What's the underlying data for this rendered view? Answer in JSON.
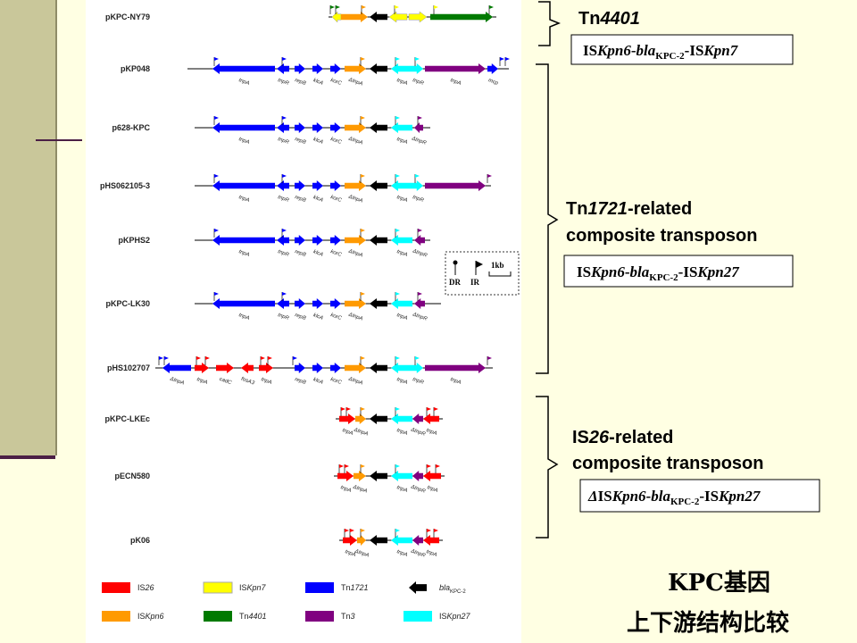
{
  "colors": {
    "IS26": "#ff0000",
    "ISKpn7": "#ffff00",
    "Tn1721": "#0000ff",
    "blaKPC-2": "#000000",
    "ISKpn6": "#ff9a00",
    "Tn4401": "#007a00",
    "Tn3": "#800080",
    "ISKpn27": "#00ffff"
  },
  "plasmids": [
    {
      "name": "pKPC-NY79",
      "features": [
        {
          "type": "ISKpn7",
          "start": 372,
          "end": 382,
          "dir": "left"
        },
        {
          "type": "ISKpn6",
          "start": 382,
          "end": 412,
          "dir": "right"
        },
        {
          "type": "blaKPC-2",
          "start": 414,
          "end": 434,
          "dir": "left"
        },
        {
          "type": "ISKpn7",
          "start": 436,
          "end": 456,
          "dir": "left"
        },
        {
          "type": "ISKpn7",
          "start": 458,
          "end": 478,
          "dir": "right"
        },
        {
          "type": "Tn4401",
          "start": 482,
          "end": 552,
          "dir": "right"
        }
      ],
      "flags": [
        {
          "x": 370,
          "color": "#007a00"
        },
        {
          "x": 376,
          "color": "#007a00"
        },
        {
          "x": 405,
          "color": "#ff9a00"
        },
        {
          "x": 442,
          "color": "#ffff00"
        },
        {
          "x": 486,
          "color": "#ffff00"
        },
        {
          "x": 548,
          "color": "#007a00"
        }
      ]
    },
    {
      "name": "pKP048",
      "features": [
        {
          "type": "Tn1721",
          "start": 238,
          "end": 308,
          "dir": "left"
        },
        {
          "type": "Tn1721",
          "start": 310,
          "end": 324,
          "dir": "left"
        },
        {
          "type": "Tn1721",
          "start": 330,
          "end": 342,
          "dir": "right"
        },
        {
          "type": "Tn1721",
          "start": 350,
          "end": 362,
          "dir": "right"
        },
        {
          "type": "Tn1721",
          "start": 370,
          "end": 382,
          "dir": "right"
        },
        {
          "type": "ISKpn6",
          "start": 386,
          "end": 410,
          "dir": "right"
        },
        {
          "type": "blaKPC-2",
          "start": 414,
          "end": 434,
          "dir": "left"
        },
        {
          "type": "ISKpn27",
          "start": 438,
          "end": 462,
          "dir": "left"
        },
        {
          "type": "ISKpn27",
          "start": 462,
          "end": 474,
          "dir": "right"
        },
        {
          "type": "Tn3",
          "start": 476,
          "end": 544,
          "dir": "right"
        },
        {
          "type": "Tn1721",
          "start": 546,
          "end": 558,
          "dir": "right"
        }
      ],
      "flags": [
        {
          "x": 240,
          "color": "#0000ff"
        },
        {
          "x": 316,
          "color": "#0000ff"
        },
        {
          "x": 404,
          "color": "#ff9a00"
        },
        {
          "x": 443,
          "color": "#00ffff"
        },
        {
          "x": 465,
          "color": "#00ffff"
        },
        {
          "x": 560,
          "color": "#0000ff"
        },
        {
          "x": 566,
          "color": "#0000ff"
        }
      ]
    },
    {
      "name": "p628-KPC",
      "features": [
        {
          "type": "Tn1721",
          "start": 238,
          "end": 308,
          "dir": "left"
        },
        {
          "type": "Tn1721",
          "start": 310,
          "end": 324,
          "dir": "left"
        },
        {
          "type": "Tn1721",
          "start": 330,
          "end": 342,
          "dir": "right"
        },
        {
          "type": "Tn1721",
          "start": 350,
          "end": 362,
          "dir": "right"
        },
        {
          "type": "Tn1721",
          "start": 370,
          "end": 382,
          "dir": "right"
        },
        {
          "type": "ISKpn6",
          "start": 386,
          "end": 410,
          "dir": "right"
        },
        {
          "type": "blaKPC-2",
          "start": 414,
          "end": 434,
          "dir": "left"
        },
        {
          "type": "ISKpn27",
          "start": 438,
          "end": 462,
          "dir": "left"
        },
        {
          "type": "Tn3",
          "start": 464,
          "end": 474,
          "dir": "left"
        }
      ],
      "flags": [
        {
          "x": 240,
          "color": "#0000ff"
        },
        {
          "x": 316,
          "color": "#0000ff"
        },
        {
          "x": 404,
          "color": "#ff9a00"
        },
        {
          "x": 443,
          "color": "#00ffff"
        },
        {
          "x": 468,
          "color": "#800080"
        }
      ]
    },
    {
      "name": "pHS062105-3",
      "features": [
        {
          "type": "Tn1721",
          "start": 238,
          "end": 308,
          "dir": "left"
        },
        {
          "type": "Tn1721",
          "start": 310,
          "end": 324,
          "dir": "left"
        },
        {
          "type": "Tn1721",
          "start": 330,
          "end": 342,
          "dir": "right"
        },
        {
          "type": "Tn1721",
          "start": 350,
          "end": 362,
          "dir": "right"
        },
        {
          "type": "Tn1721",
          "start": 370,
          "end": 382,
          "dir": "right"
        },
        {
          "type": "ISKpn6",
          "start": 386,
          "end": 410,
          "dir": "right"
        },
        {
          "type": "blaKPC-2",
          "start": 414,
          "end": 434,
          "dir": "left"
        },
        {
          "type": "ISKpn27",
          "start": 438,
          "end": 462,
          "dir": "left"
        },
        {
          "type": "ISKpn27",
          "start": 462,
          "end": 474,
          "dir": "right"
        },
        {
          "type": "Tn3",
          "start": 476,
          "end": 544,
          "dir": "right"
        }
      ],
      "flags": [
        {
          "x": 240,
          "color": "#0000ff"
        },
        {
          "x": 316,
          "color": "#0000ff"
        },
        {
          "x": 404,
          "color": "#ff9a00"
        },
        {
          "x": 443,
          "color": "#00ffff"
        },
        {
          "x": 465,
          "color": "#00ffff"
        },
        {
          "x": 546,
          "color": "#800080"
        }
      ]
    },
    {
      "name": "pKPHS2",
      "features": [
        {
          "type": "Tn1721",
          "start": 238,
          "end": 308,
          "dir": "left"
        },
        {
          "type": "Tn1721",
          "start": 310,
          "end": 324,
          "dir": "left"
        },
        {
          "type": "Tn1721",
          "start": 330,
          "end": 342,
          "dir": "right"
        },
        {
          "type": "Tn1721",
          "start": 350,
          "end": 362,
          "dir": "right"
        },
        {
          "type": "Tn1721",
          "start": 370,
          "end": 382,
          "dir": "right"
        },
        {
          "type": "ISKpn6",
          "start": 386,
          "end": 410,
          "dir": "right"
        },
        {
          "type": "blaKPC-2",
          "start": 414,
          "end": 434,
          "dir": "left"
        },
        {
          "type": "ISKpn27",
          "start": 438,
          "end": 462,
          "dir": "left"
        },
        {
          "type": "Tn3",
          "start": 464,
          "end": 476,
          "dir": "left"
        }
      ],
      "flags": [
        {
          "x": 240,
          "color": "#0000ff"
        },
        {
          "x": 316,
          "color": "#0000ff"
        },
        {
          "x": 404,
          "color": "#ff9a00"
        },
        {
          "x": 443,
          "color": "#00ffff"
        },
        {
          "x": 468,
          "color": "#800080"
        }
      ]
    },
    {
      "name": "pKPC-LK30",
      "features": [
        {
          "type": "Tn1721",
          "start": 238,
          "end": 308,
          "dir": "left"
        },
        {
          "type": "Tn1721",
          "start": 310,
          "end": 324,
          "dir": "left"
        },
        {
          "type": "Tn1721",
          "start": 330,
          "end": 342,
          "dir": "right"
        },
        {
          "type": "Tn1721",
          "start": 350,
          "end": 362,
          "dir": "right"
        },
        {
          "type": "Tn1721",
          "start": 370,
          "end": 382,
          "dir": "right"
        },
        {
          "type": "ISKpn6",
          "start": 386,
          "end": 410,
          "dir": "right"
        },
        {
          "type": "blaKPC-2",
          "start": 414,
          "end": 434,
          "dir": "left"
        },
        {
          "type": "ISKpn27",
          "start": 438,
          "end": 462,
          "dir": "left"
        },
        {
          "type": "Tn3",
          "start": 464,
          "end": 476,
          "dir": "left"
        }
      ],
      "flags": [
        {
          "x": 240,
          "color": "#0000ff"
        },
        {
          "x": 316,
          "color": "#0000ff"
        },
        {
          "x": 404,
          "color": "#ff9a00"
        },
        {
          "x": 443,
          "color": "#00ffff"
        },
        {
          "x": 468,
          "color": "#800080"
        }
      ]
    },
    {
      "name": "pHS102707",
      "features": [
        {
          "type": "Tn1721",
          "start": 182,
          "end": 214,
          "dir": "left"
        },
        {
          "type": "IS26",
          "start": 218,
          "end": 234,
          "dir": "right"
        },
        {
          "type": "IS26",
          "start": 242,
          "end": 262,
          "dir": "right"
        },
        {
          "type": "IS26",
          "start": 270,
          "end": 284,
          "dir": "left"
        },
        {
          "type": "IS26",
          "start": 290,
          "end": 306,
          "dir": "right"
        },
        {
          "type": "Tn1721",
          "start": 330,
          "end": 342,
          "dir": "right"
        },
        {
          "type": "Tn1721",
          "start": 350,
          "end": 362,
          "dir": "right"
        },
        {
          "type": "Tn1721",
          "start": 370,
          "end": 382,
          "dir": "right"
        },
        {
          "type": "ISKpn6",
          "start": 386,
          "end": 410,
          "dir": "right"
        },
        {
          "type": "blaKPC-2",
          "start": 414,
          "end": 434,
          "dir": "left"
        },
        {
          "type": "ISKpn27",
          "start": 438,
          "end": 462,
          "dir": "left"
        },
        {
          "type": "ISKpn27",
          "start": 462,
          "end": 474,
          "dir": "right"
        },
        {
          "type": "Tn3",
          "start": 476,
          "end": 544,
          "dir": "right"
        }
      ],
      "flags": [
        {
          "x": 178,
          "color": "#0000ff"
        },
        {
          "x": 184,
          "color": "#0000ff"
        },
        {
          "x": 220,
          "color": "#ff0000"
        },
        {
          "x": 230,
          "color": "#ff0000"
        },
        {
          "x": 292,
          "color": "#ff0000"
        },
        {
          "x": 300,
          "color": "#ff0000"
        },
        {
          "x": 328,
          "color": "#0000ff"
        },
        {
          "x": 404,
          "color": "#ff9a00"
        },
        {
          "x": 443,
          "color": "#00ffff"
        },
        {
          "x": 465,
          "color": "#00ffff"
        },
        {
          "x": 546,
          "color": "#800080"
        }
      ]
    },
    {
      "name": "pKPC-LKEc",
      "features": [
        {
          "type": "IS26",
          "start": 380,
          "end": 398,
          "dir": "right"
        },
        {
          "type": "ISKpn6",
          "start": 398,
          "end": 410,
          "dir": "right"
        },
        {
          "type": "blaKPC-2",
          "start": 414,
          "end": 434,
          "dir": "left"
        },
        {
          "type": "ISKpn27",
          "start": 438,
          "end": 462,
          "dir": "left"
        },
        {
          "type": "Tn3",
          "start": 462,
          "end": 474,
          "dir": "left"
        },
        {
          "type": "IS26",
          "start": 474,
          "end": 492,
          "dir": "left"
        }
      ],
      "flags": [
        {
          "x": 382,
          "color": "#ff0000"
        },
        {
          "x": 388,
          "color": "#ff0000"
        },
        {
          "x": 404,
          "color": "#ff9a00"
        },
        {
          "x": 443,
          "color": "#00ffff"
        },
        {
          "x": 478,
          "color": "#ff0000"
        },
        {
          "x": 486,
          "color": "#ff0000"
        }
      ]
    },
    {
      "name": "pECN580",
      "features": [
        {
          "type": "IS26",
          "start": 378,
          "end": 396,
          "dir": "right"
        },
        {
          "type": "ISKpn6",
          "start": 396,
          "end": 410,
          "dir": "right"
        },
        {
          "type": "blaKPC-2",
          "start": 414,
          "end": 434,
          "dir": "left"
        },
        {
          "type": "ISKpn27",
          "start": 438,
          "end": 462,
          "dir": "left"
        },
        {
          "type": "Tn3",
          "start": 462,
          "end": 474,
          "dir": "left"
        },
        {
          "type": "IS26",
          "start": 474,
          "end": 494,
          "dir": "left"
        }
      ],
      "flags": [
        {
          "x": 380,
          "color": "#ff0000"
        },
        {
          "x": 386,
          "color": "#ff0000"
        },
        {
          "x": 404,
          "color": "#ff9a00"
        },
        {
          "x": 443,
          "color": "#00ffff"
        },
        {
          "x": 478,
          "color": "#ff0000"
        },
        {
          "x": 488,
          "color": "#ff0000"
        }
      ]
    },
    {
      "name": "pK06",
      "features": [
        {
          "type": "IS26",
          "start": 384,
          "end": 400,
          "dir": "right"
        },
        {
          "type": "ISKpn6",
          "start": 400,
          "end": 410,
          "dir": "right"
        },
        {
          "type": "blaKPC-2",
          "start": 414,
          "end": 434,
          "dir": "left"
        },
        {
          "type": "ISKpn27",
          "start": 438,
          "end": 462,
          "dir": "left"
        },
        {
          "type": "Tn3",
          "start": 462,
          "end": 474,
          "dir": "left"
        },
        {
          "type": "IS26",
          "start": 474,
          "end": 492,
          "dir": "left"
        }
      ],
      "flags": [
        {
          "x": 386,
          "color": "#ff0000"
        },
        {
          "x": 392,
          "color": "#ff0000"
        },
        {
          "x": 404,
          "color": "#ff9a00"
        },
        {
          "x": 443,
          "color": "#00ffff"
        },
        {
          "x": 478,
          "color": "#ff0000"
        },
        {
          "x": 486,
          "color": "#ff0000"
        }
      ]
    }
  ],
  "gene_labels": {
    "pKP048": [
      "tnpA",
      "tnpR",
      "repB",
      "klcA",
      "korC",
      "ΔtnpA",
      "tnpA",
      "tnpR",
      "tnpA",
      "mcp"
    ],
    "p628-KPC": [
      "tnpA",
      "tnpR",
      "repB",
      "klcA",
      "korC",
      "ΔtnpA",
      "tnpA",
      "ΔtnpR"
    ],
    "pHS062105-3": [
      "tnpA",
      "tnpR",
      "repB",
      "klcA",
      "korC",
      "ΔtnpA",
      "tnpA",
      "tnpR"
    ],
    "pKPHS2": [
      "tnpA",
      "tnpR",
      "repB",
      "klcA",
      "korC",
      "ΔtnpA",
      "tnpA",
      "ΔtnpR"
    ],
    "pKPC-LK30": [
      "tnpA",
      "tnpR",
      "repB",
      "klcA",
      "korC",
      "ΔtnpA",
      "tnpA",
      "ΔtnpR"
    ],
    "pHS102707": [
      "ΔtnpA",
      "tnpA",
      "cadC",
      "fosA3",
      "tnpA",
      "repB",
      "klcA",
      "korC",
      "ΔtnpA",
      "tnpA",
      "tnpR",
      "tnpA"
    ],
    "pKPC-LKEc": [
      "tnpA",
      "ΔtnpA",
      "tnpA",
      "ΔtnpR",
      "tnpA"
    ],
    "pECN580": [
      "tnpA",
      "ΔtnpA",
      "tnpA",
      "ΔtnpR",
      "tnpA"
    ],
    "pK06": [
      "tnpA",
      "ΔtnpA",
      "tnpA",
      "ΔtnpR",
      "tnpA"
    ]
  },
  "scale_box": {
    "dr": "DR",
    "ir": "IR",
    "scale": "1kb"
  },
  "legend": [
    {
      "type": "IS26",
      "label_main": "IS",
      "label_italic": "26"
    },
    {
      "type": "ISKpn7",
      "label_main": "IS",
      "label_italic": "Kpn7"
    },
    {
      "type": "Tn1721",
      "label_main": "Tn",
      "label_italic": "1721"
    },
    {
      "type": "blaKPC-2",
      "label_main": "",
      "label_italic": "bla",
      "label_sub": "KPC-2"
    },
    {
      "type": "ISKpn6",
      "label_main": "IS",
      "label_italic": "Kpn6"
    },
    {
      "type": "Tn4401",
      "label_main": "Tn",
      "label_italic": "4401"
    },
    {
      "type": "Tn3",
      "label_main": "Tn",
      "label_italic": "3"
    },
    {
      "type": "ISKpn27",
      "label_main": "IS",
      "label_italic": "Kpn27"
    }
  ],
  "groups": [
    {
      "title_plain": "Tn",
      "title_italic": "4401",
      "title_suffix": "",
      "title_line2": "",
      "formula_pre": "",
      "formula_a": "IS",
      "formula_a_it": "Kpn6",
      "formula_mid": "-",
      "formula_bla": "bla",
      "formula_sub": "KPC-2",
      "formula_b": "-IS",
      "formula_b_it": "Kpn7"
    },
    {
      "title_plain": "Tn",
      "title_italic": "1721",
      "title_suffix": "-related",
      "title_line2": "composite transposon",
      "formula_pre": "",
      "formula_a": "IS",
      "formula_a_it": "Kpn6",
      "formula_mid": "-",
      "formula_bla": "bla",
      "formula_sub": "KPC-2",
      "formula_b": "-IS",
      "formula_b_it": "Kpn27"
    },
    {
      "title_plain": "IS",
      "title_italic": "26",
      "title_suffix": "-related",
      "title_line2": "composite transposon",
      "formula_pre": "Δ",
      "formula_a": "IS",
      "formula_a_it": "Kpn6",
      "formula_mid": "-",
      "formula_bla": "bla",
      "formula_sub": "KPC-2",
      "formula_b": "-IS",
      "formula_b_it": "Kpn27"
    }
  ],
  "caption": {
    "line1": "KPC基因",
    "line2": "上下游结构比较"
  }
}
